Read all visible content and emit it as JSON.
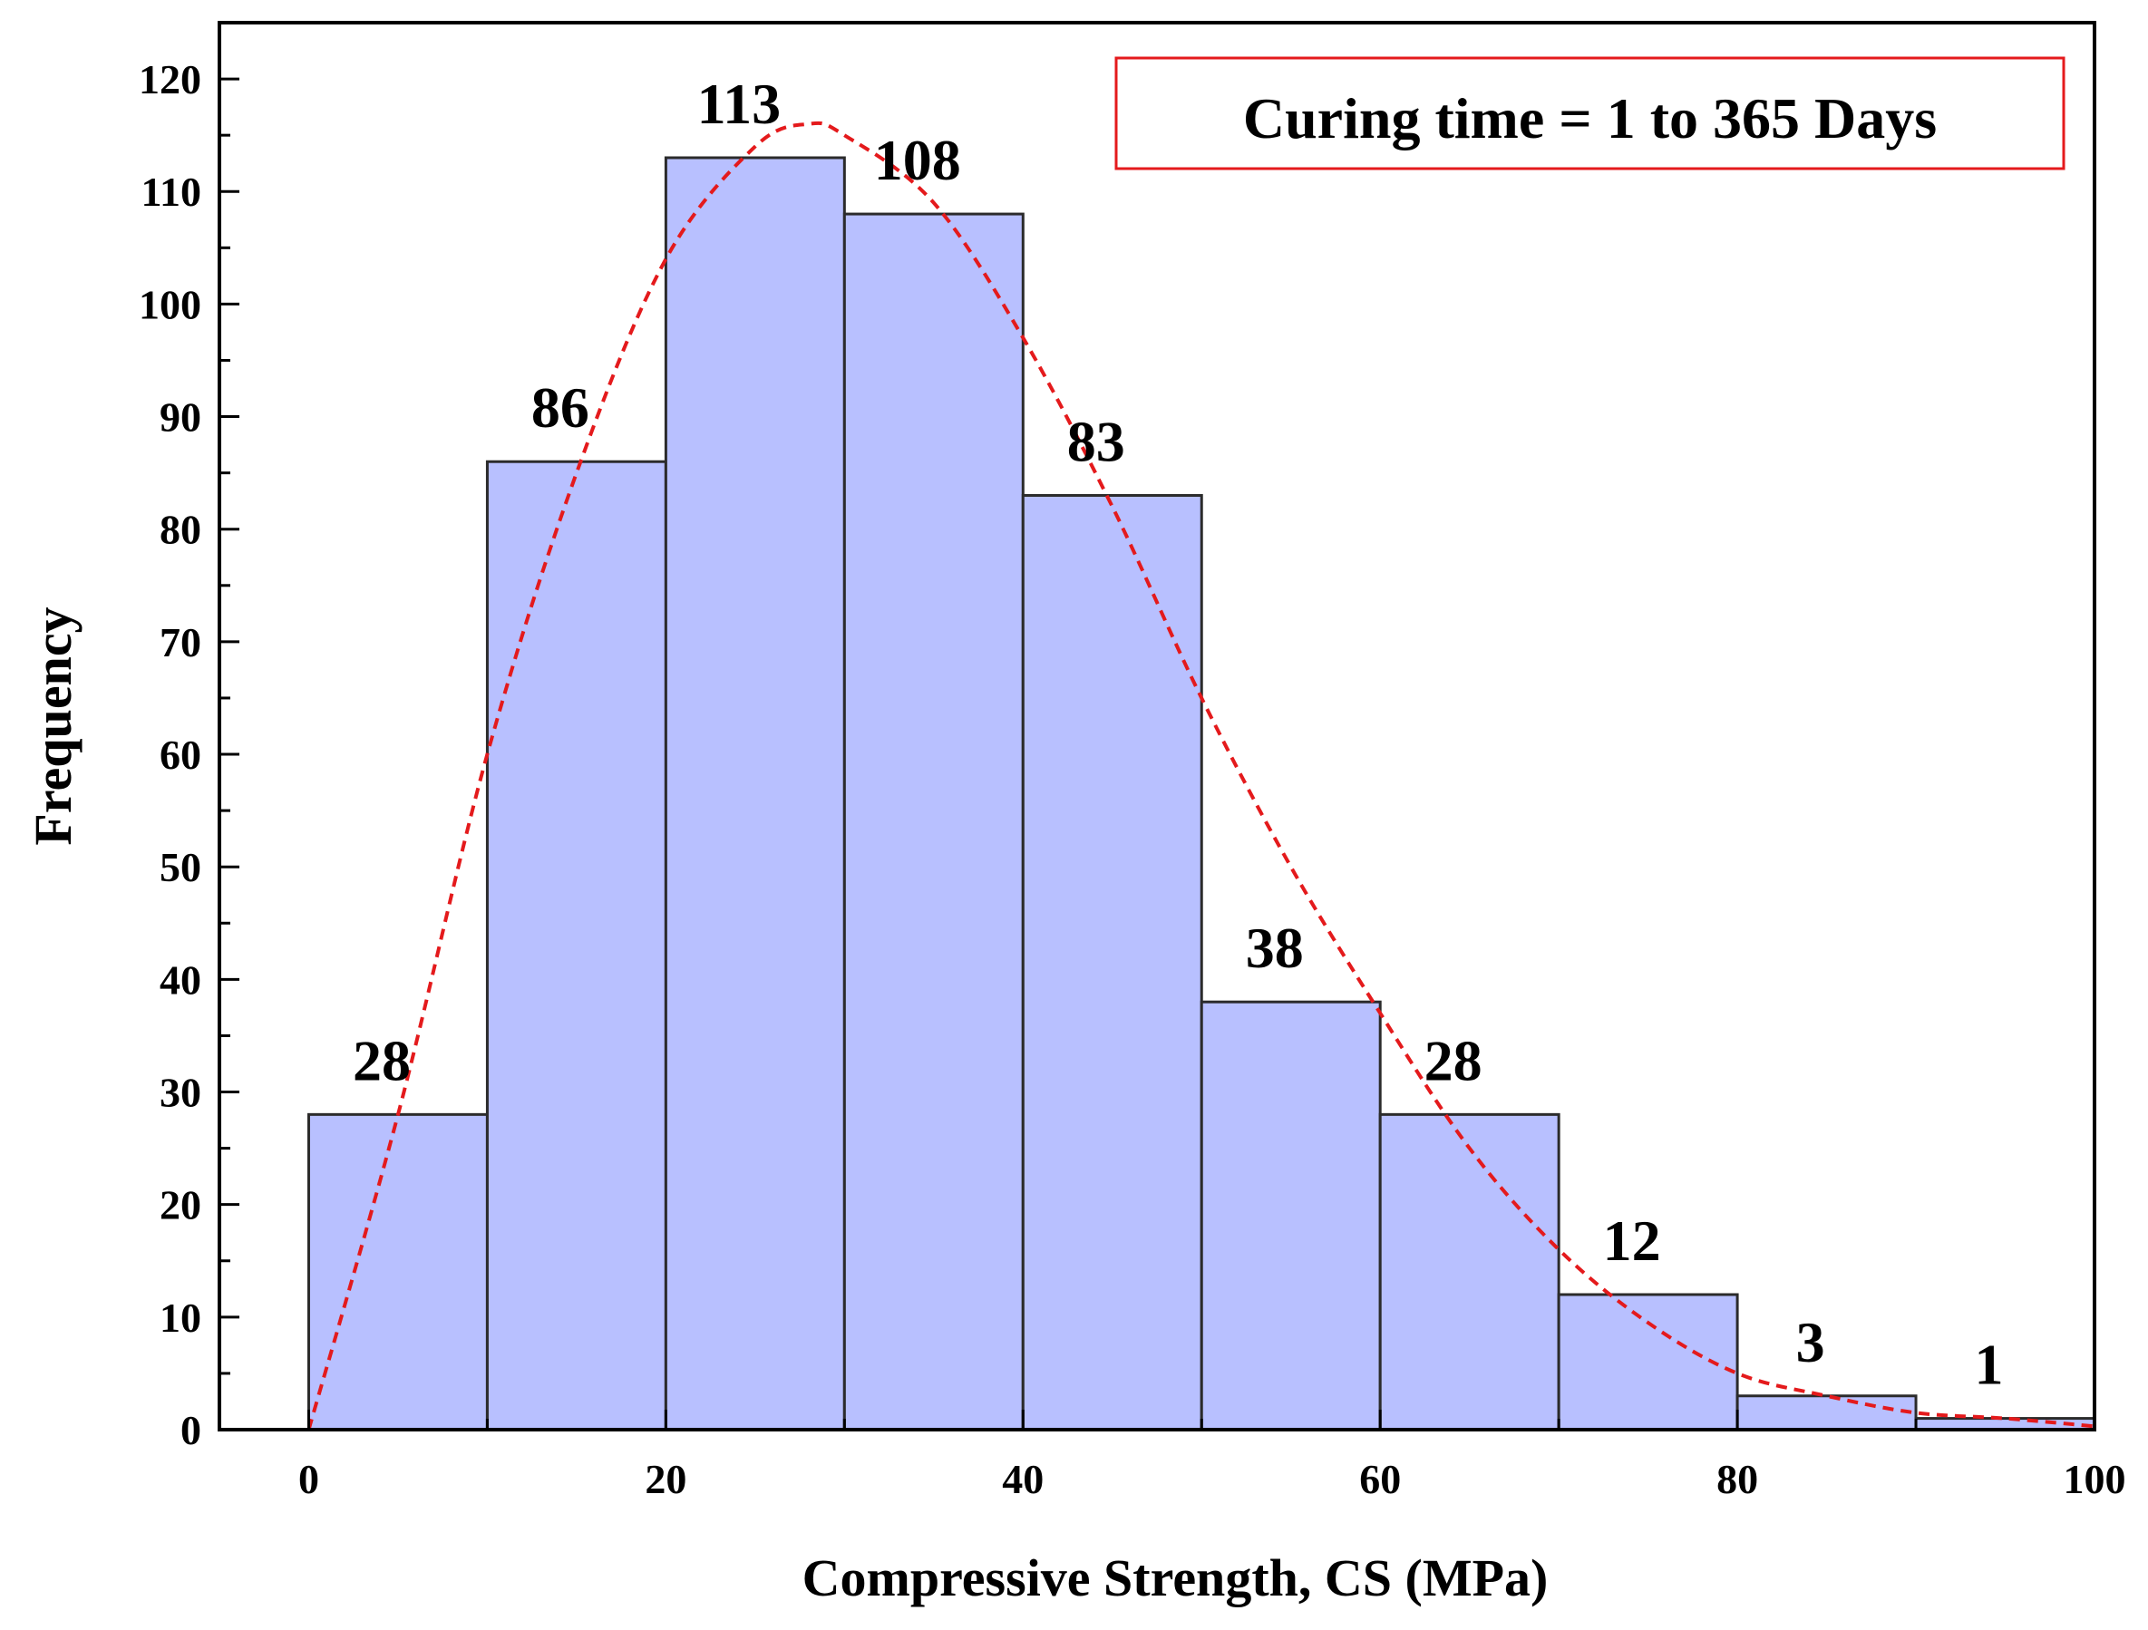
{
  "chart_data": {
    "type": "histogram",
    "bin_edges": [
      0,
      10,
      20,
      30,
      40,
      50,
      60,
      70,
      80,
      90,
      100
    ],
    "values": [
      28,
      86,
      113,
      108,
      83,
      38,
      28,
      12,
      3,
      1
    ],
    "data_labels": [
      "28",
      "86",
      "113",
      "108",
      "83",
      "38",
      "28",
      "12",
      "3",
      "1"
    ],
    "xlabel": "Compressive Strength, CS (MPa)",
    "ylabel": "Frequency",
    "xlim": [
      -5,
      100
    ],
    "ylim": [
      0,
      125
    ],
    "x_ticks": [
      0,
      20,
      40,
      60,
      80,
      100
    ],
    "x_tick_labels": [
      "0",
      "20",
      "40",
      "60",
      "80",
      "100"
    ],
    "y_ticks": [
      0,
      10,
      20,
      30,
      40,
      50,
      60,
      70,
      80,
      90,
      100,
      110,
      120
    ],
    "y_tick_labels": [
      "0",
      "10",
      "20",
      "30",
      "40",
      "50",
      "60",
      "70",
      "80",
      "90",
      "100",
      "110",
      "120"
    ],
    "annotation": "Curing time = 1 to 365 Days",
    "annotation_position": "top-right",
    "fit_curve": {
      "style": "dashed",
      "x": [
        0,
        5,
        10,
        15,
        20,
        25,
        28,
        30,
        35,
        40,
        45,
        50,
        55,
        60,
        65,
        70,
        75,
        80,
        85,
        90,
        95,
        100
      ],
      "y": [
        0,
        28,
        60,
        85,
        104,
        114,
        116,
        115,
        109,
        97,
        82,
        65,
        50,
        37,
        25,
        16,
        9.5,
        5,
        3,
        1.5,
        1,
        0.3
      ]
    },
    "colors": {
      "bar_fill": "#b8c0ff",
      "bar_stroke": "#2b2b2b",
      "fit_curve": "#e41a1c",
      "annotation_border": "#e41a1c",
      "axis": "#000000"
    }
  }
}
